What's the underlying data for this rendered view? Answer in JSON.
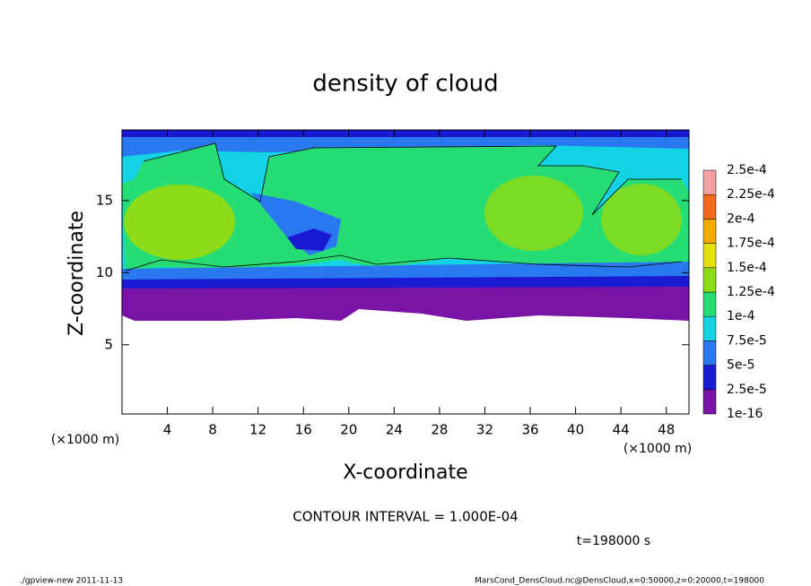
{
  "chart_data": {
    "type": "contour",
    "title": "density of cloud",
    "x_label": "X-coordinate",
    "y_label": "Z-coordinate",
    "x_unit": "(×1000 m)",
    "y_unit": "(×1000 m)",
    "xlim": [
      0,
      50
    ],
    "xticks": [
      4,
      8,
      12,
      16,
      20,
      24,
      28,
      32,
      36,
      40,
      44,
      48
    ],
    "ylim": [
      0.2,
      19.9
    ],
    "yticks": [
      5,
      10,
      15
    ],
    "levels": [
      {
        "value": 1e-16,
        "label": "1e-16"
      },
      {
        "value": 2.5e-05,
        "label": "2.5e-5"
      },
      {
        "value": 5e-05,
        "label": "5e-5"
      },
      {
        "value": 7.5e-05,
        "label": "7.5e-5"
      },
      {
        "value": 0.0001,
        "label": "1e-4"
      },
      {
        "value": 0.000125,
        "label": "1.25e-4"
      },
      {
        "value": 0.00015,
        "label": "1.5e-4"
      },
      {
        "value": 0.000175,
        "label": "1.75e-4"
      },
      {
        "value": 0.0002,
        "label": "2e-4"
      },
      {
        "value": 0.000225,
        "label": "2.25e-4"
      },
      {
        "value": 0.00025,
        "label": "2.5e-4"
      }
    ],
    "colors": [
      "#7a14a6",
      "#1a1ad2",
      "#2a78f0",
      "#12d2e4",
      "#26dc74",
      "#8cdc18",
      "#e6e010",
      "#f2aa00",
      "#f26a1a",
      "#f4a0a0"
    ],
    "contour_interval": "CONTOUR INTERVAL = 1.000E-04",
    "time_label": "t=198000 s",
    "footer_left": "./gpview-new  2011-11-13",
    "footer_right": "MarsCond_DensCloud.nc@DensCloud,x=0:50000,z=0:20000,t=198000"
  }
}
